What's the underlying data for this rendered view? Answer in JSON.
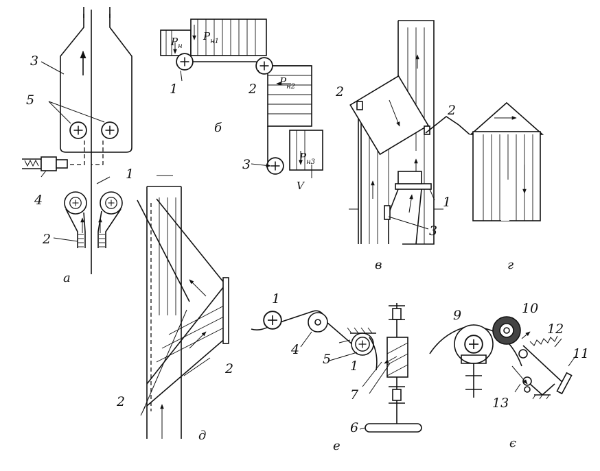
{
  "panels": {
    "a": {
      "caption": "а",
      "labels": [
        "3",
        "5",
        "1",
        "4",
        "2"
      ]
    },
    "b": {
      "caption": "б",
      "labels": [
        "1",
        "2",
        "3"
      ],
      "force_symbol": "P",
      "force_indices": [
        "н",
        "н1",
        "н2",
        "н3"
      ],
      "speed_symbol": "V"
    },
    "v": {
      "caption": "в",
      "labels": [
        "2",
        "1",
        "3"
      ]
    },
    "g": {
      "caption": "г",
      "labels": [
        "2"
      ]
    },
    "d": {
      "caption": "д",
      "labels": [
        "2",
        "2"
      ]
    },
    "e": {
      "caption": "е",
      "labels": [
        "1",
        "4",
        "5",
        "1",
        "7",
        "6"
      ]
    },
    "ye": {
      "caption": "є",
      "labels": [
        "9",
        "10",
        "12",
        "11",
        "13"
      ]
    }
  },
  "icons": [
    "plus-circle-icon",
    "arrow-icon"
  ]
}
